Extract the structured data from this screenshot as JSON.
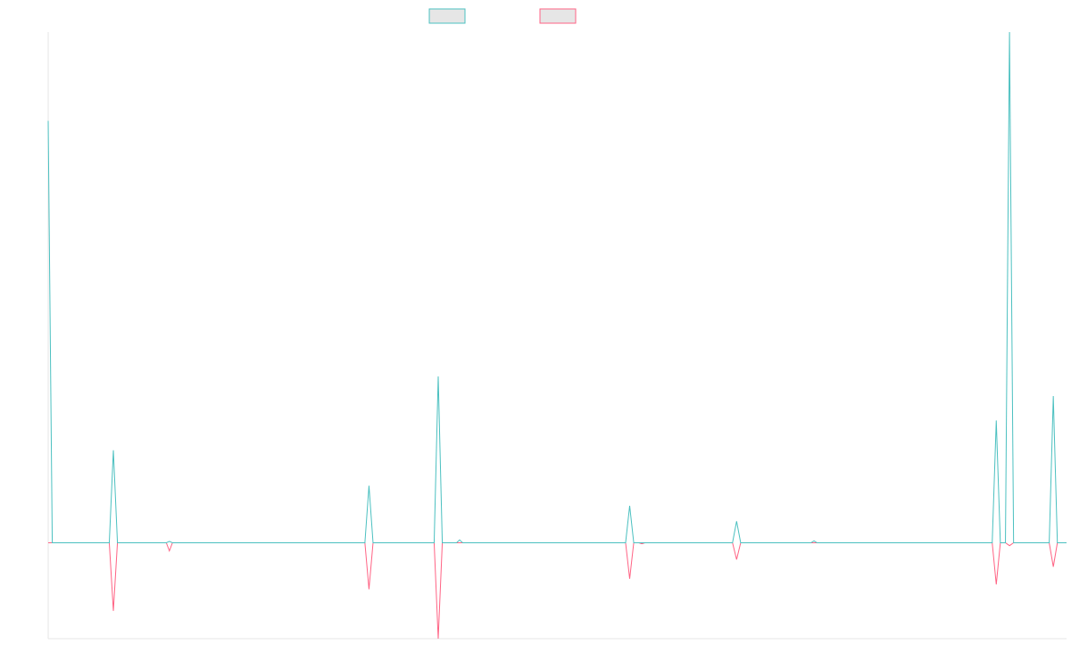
{
  "chart_data": {
    "type": "line",
    "title": "",
    "xlabel": "",
    "ylabel": "",
    "legend_position": "top-center",
    "grid": false,
    "xlim": [
      0,
      1000
    ],
    "ylim": [
      -200,
      1065
    ],
    "series": [
      {
        "name": "",
        "color": "#4bc0c0",
        "fill": "#e6e6e6",
        "points": [
          [
            0,
            880
          ],
          [
            4,
            0
          ],
          [
            60,
            0
          ],
          [
            64,
            193
          ],
          [
            68,
            0
          ],
          [
            116,
            0
          ],
          [
            119,
            3
          ],
          [
            122,
            0
          ],
          [
            311,
            0
          ],
          [
            315,
            119
          ],
          [
            319,
            0
          ],
          [
            379,
            0
          ],
          [
            383,
            347
          ],
          [
            387,
            0
          ],
          [
            401,
            0
          ],
          [
            404,
            6
          ],
          [
            407,
            0
          ],
          [
            567,
            0
          ],
          [
            571,
            77
          ],
          [
            575,
            0
          ],
          [
            580,
            0
          ],
          [
            583,
            0
          ],
          [
            586,
            0
          ],
          [
            672,
            0
          ],
          [
            676,
            45
          ],
          [
            680,
            0
          ],
          [
            749,
            0
          ],
          [
            752,
            4
          ],
          [
            755,
            0
          ],
          [
            927,
            0
          ],
          [
            931,
            255
          ],
          [
            935,
            0
          ],
          [
            940,
            0
          ],
          [
            944,
            1065
          ],
          [
            948,
            0
          ],
          [
            983,
            0
          ],
          [
            987,
            306
          ],
          [
            991,
            0
          ],
          [
            1000,
            0
          ]
        ]
      },
      {
        "name": "",
        "color": "#ff6384",
        "fill": "#e6e6e6",
        "points": [
          [
            0,
            0
          ],
          [
            60,
            0
          ],
          [
            64,
            -142
          ],
          [
            68,
            0
          ],
          [
            116,
            0
          ],
          [
            119,
            -17
          ],
          [
            122,
            0
          ],
          [
            311,
            0
          ],
          [
            315,
            -97
          ],
          [
            319,
            0
          ],
          [
            379,
            0
          ],
          [
            383,
            -200
          ],
          [
            387,
            0
          ],
          [
            567,
            0
          ],
          [
            571,
            -75
          ],
          [
            575,
            0
          ],
          [
            580,
            0
          ],
          [
            583,
            -2
          ],
          [
            586,
            0
          ],
          [
            672,
            0
          ],
          [
            676,
            -35
          ],
          [
            680,
            0
          ],
          [
            927,
            0
          ],
          [
            931,
            -87
          ],
          [
            935,
            0
          ],
          [
            940,
            0
          ],
          [
            944,
            -6
          ],
          [
            948,
            0
          ],
          [
            983,
            0
          ],
          [
            987,
            -50
          ],
          [
            991,
            0
          ],
          [
            1000,
            0
          ]
        ]
      }
    ]
  }
}
